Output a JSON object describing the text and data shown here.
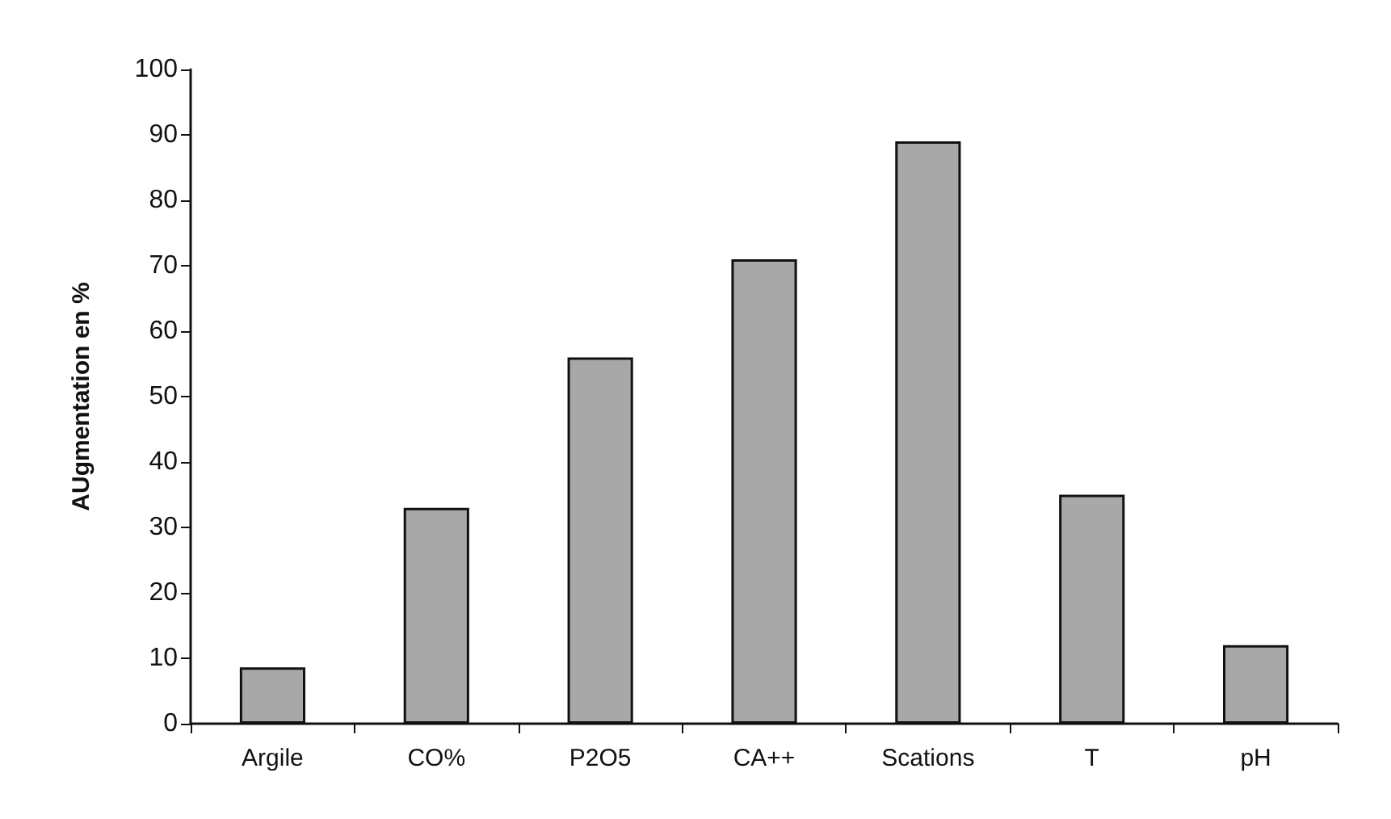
{
  "chart_data": {
    "type": "bar",
    "ylabel": "AUgmentation en %",
    "categories": [
      "Argile",
      "CO%",
      "P2O5",
      "CA++",
      "Scations",
      "T",
      "pH"
    ],
    "values": [
      8.6,
      33,
      56,
      71,
      89,
      35,
      12
    ],
    "color": "#a8a8a8",
    "ylim": [
      0,
      100
    ],
    "yticks": [
      0,
      10,
      20,
      30,
      40,
      50,
      60,
      70,
      80,
      90,
      100
    ],
    "grid": false
  }
}
